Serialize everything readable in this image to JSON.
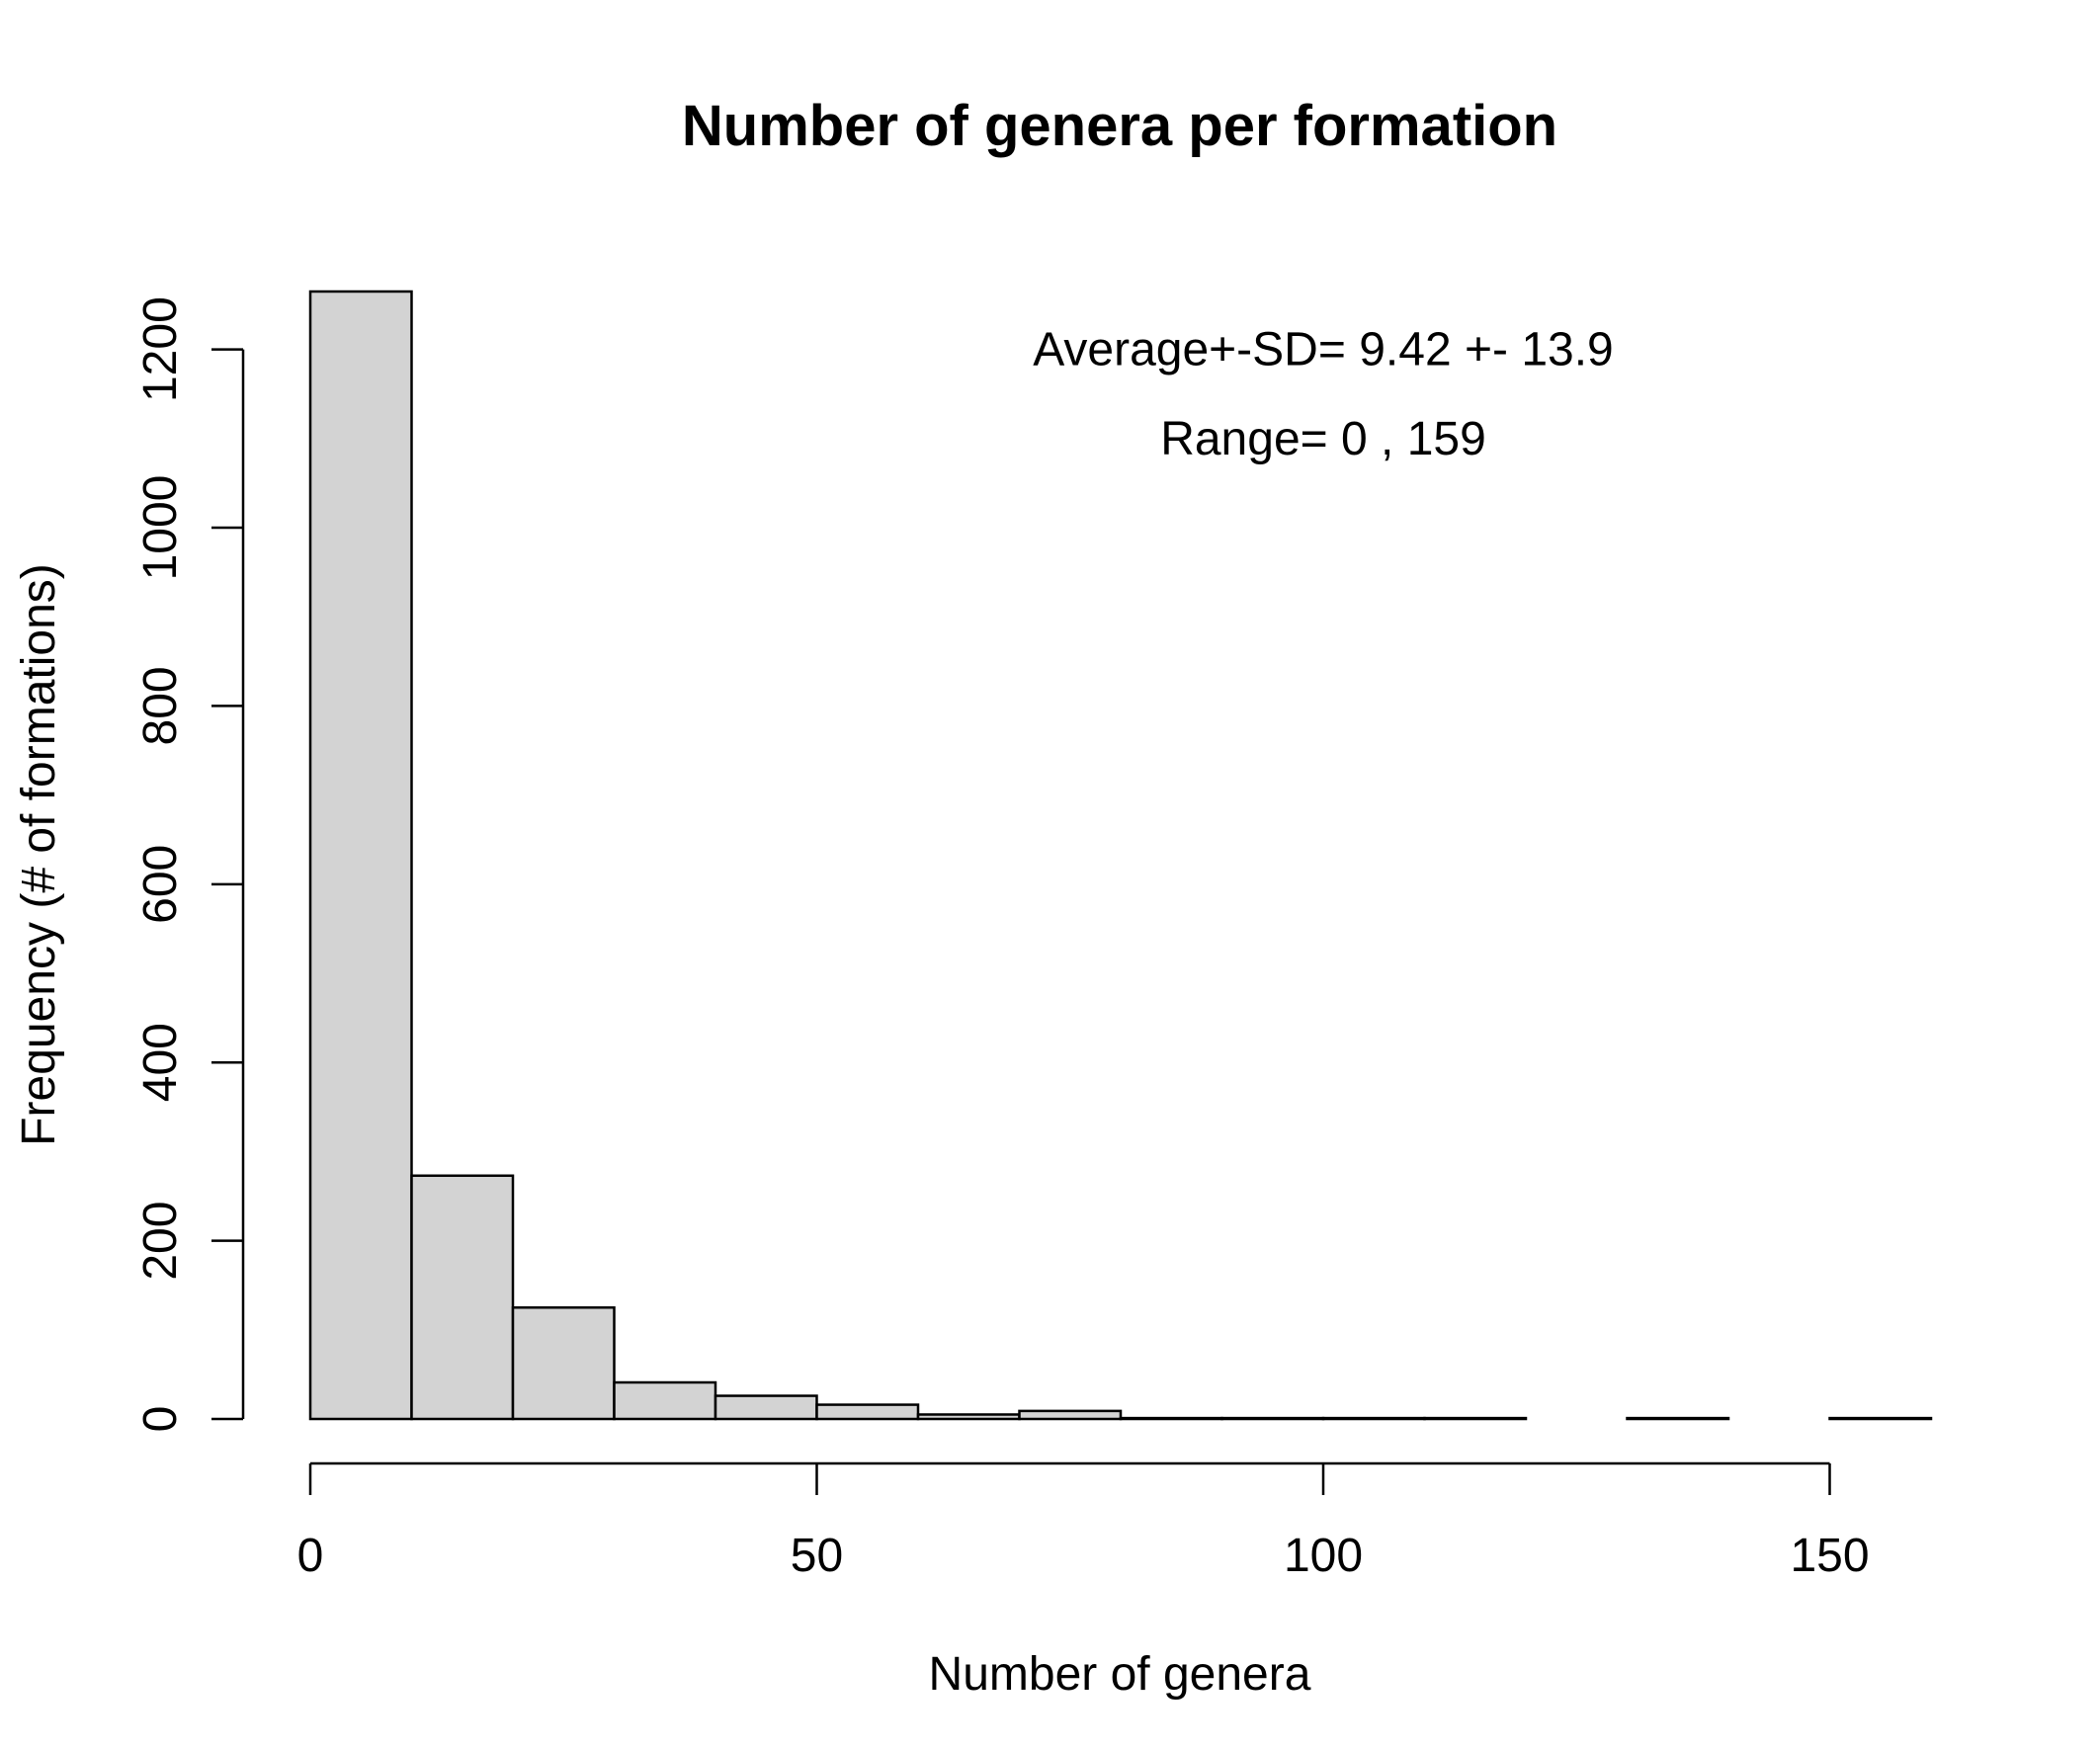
{
  "chart_data": {
    "type": "bar",
    "title": "Number of genera per formation",
    "xlabel": "Number of genera",
    "ylabel": "Frequency (# of formations)",
    "bins": [
      {
        "from": 0,
        "to": 10,
        "count": 1265
      },
      {
        "from": 10,
        "to": 20,
        "count": 273
      },
      {
        "from": 20,
        "to": 30,
        "count": 125
      },
      {
        "from": 30,
        "to": 40,
        "count": 41
      },
      {
        "from": 40,
        "to": 50,
        "count": 26
      },
      {
        "from": 50,
        "to": 60,
        "count": 16
      },
      {
        "from": 60,
        "to": 70,
        "count": 5
      },
      {
        "from": 70,
        "to": 80,
        "count": 9
      },
      {
        "from": 80,
        "to": 90,
        "count": 1
      },
      {
        "from": 90,
        "to": 100,
        "count": 1
      },
      {
        "from": 100,
        "to": 110,
        "count": 1
      },
      {
        "from": 110,
        "to": 120,
        "count": 1
      },
      {
        "from": 120,
        "to": 130,
        "count": 0
      },
      {
        "from": 130,
        "to": 140,
        "count": 1
      },
      {
        "from": 140,
        "to": 150,
        "count": 0
      },
      {
        "from": 150,
        "to": 160,
        "count": 1
      }
    ],
    "xlim": [
      0,
      160
    ],
    "ylim": [
      0,
      1265
    ],
    "x_ticks": [
      0,
      50,
      100,
      150
    ],
    "x_tick_labels": [
      "0",
      "50",
      "100",
      "150"
    ],
    "y_ticks": [
      0,
      200,
      400,
      600,
      800,
      1000,
      1200
    ],
    "y_tick_labels": [
      "0",
      "200",
      "400",
      "600",
      "800",
      "1000",
      "1200"
    ],
    "annotations": [
      {
        "text": "Average+-SD= 9.42 +- 13.9",
        "x": 100,
        "y": 1200
      },
      {
        "text": "Range= 0 , 159",
        "x": 100,
        "y": 1100
      }
    ],
    "bar_fill": "#d3d3d3",
    "bar_stroke": "#000000",
    "grid": false,
    "legend": "none"
  }
}
